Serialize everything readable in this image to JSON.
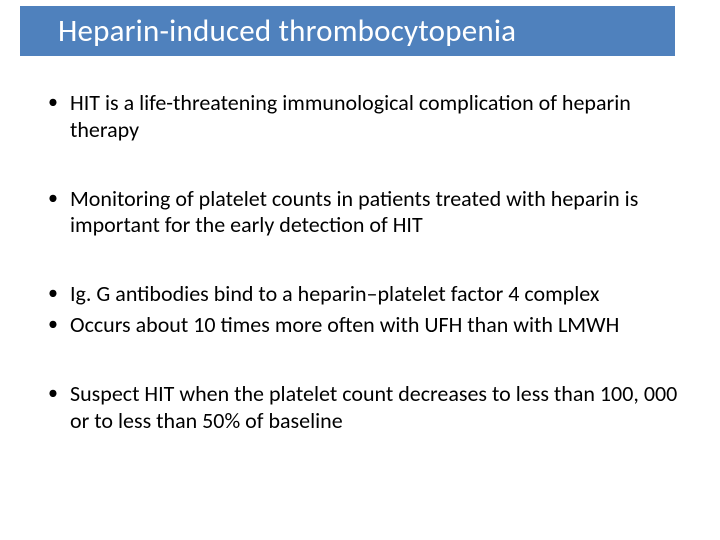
{
  "title": {
    "text": "Heparin-induced thrombocytopenia",
    "background_color": "#4f81bd",
    "text_color": "#ffffff",
    "fontsize_pt": 31
  },
  "body": {
    "text_color": "#000000",
    "fontsize_pt": 22,
    "bullets": [
      "HIT is a life-threatening immunological complication of heparin therapy",
      "Monitoring of platelet counts in patients treated with heparin is important for the early detection of HIT",
      "Ig. G antibodies bind to a heparin–platelet factor 4 complex",
      "Occurs about 10 times more often with UFH than with LMWH",
      "Suspect HIT when the platelet count decreases to less than 100, 000 or to less than 50% of baseline"
    ],
    "groups": [
      [
        0
      ],
      [
        1
      ],
      [
        2,
        3
      ],
      [
        4
      ]
    ]
  },
  "background_color": "#ffffff"
}
